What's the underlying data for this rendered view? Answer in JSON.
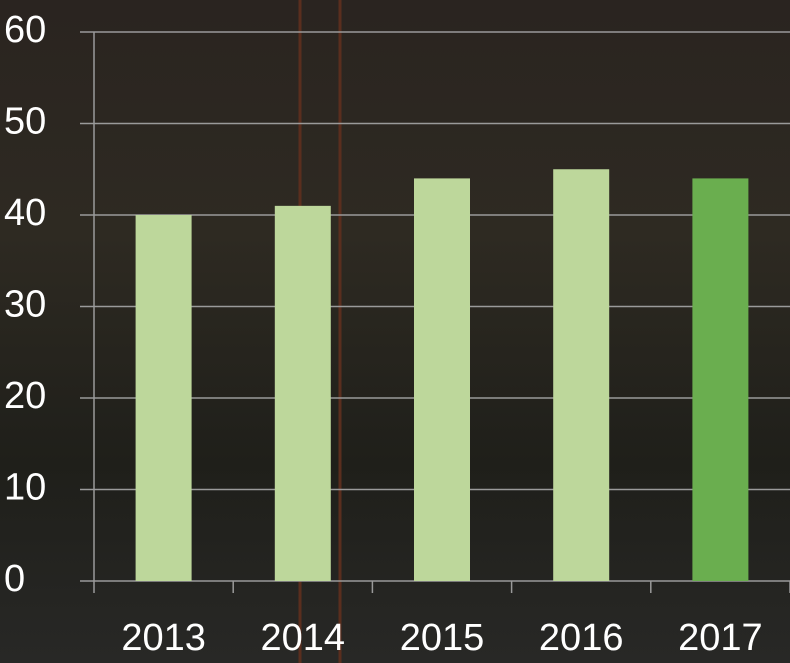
{
  "chart_data": {
    "type": "bar",
    "categories": [
      "2013",
      "2014",
      "2015",
      "2016",
      "2017"
    ],
    "values": [
      40,
      41,
      44,
      45,
      44
    ],
    "colors": [
      "#bdd79b",
      "#bdd79b",
      "#bdd79b",
      "#bdd79b",
      "#6aae4f"
    ],
    "ylim": [
      0,
      60
    ],
    "yticks": [
      0,
      10,
      20,
      30,
      40,
      50,
      60
    ],
    "grid": true
  }
}
